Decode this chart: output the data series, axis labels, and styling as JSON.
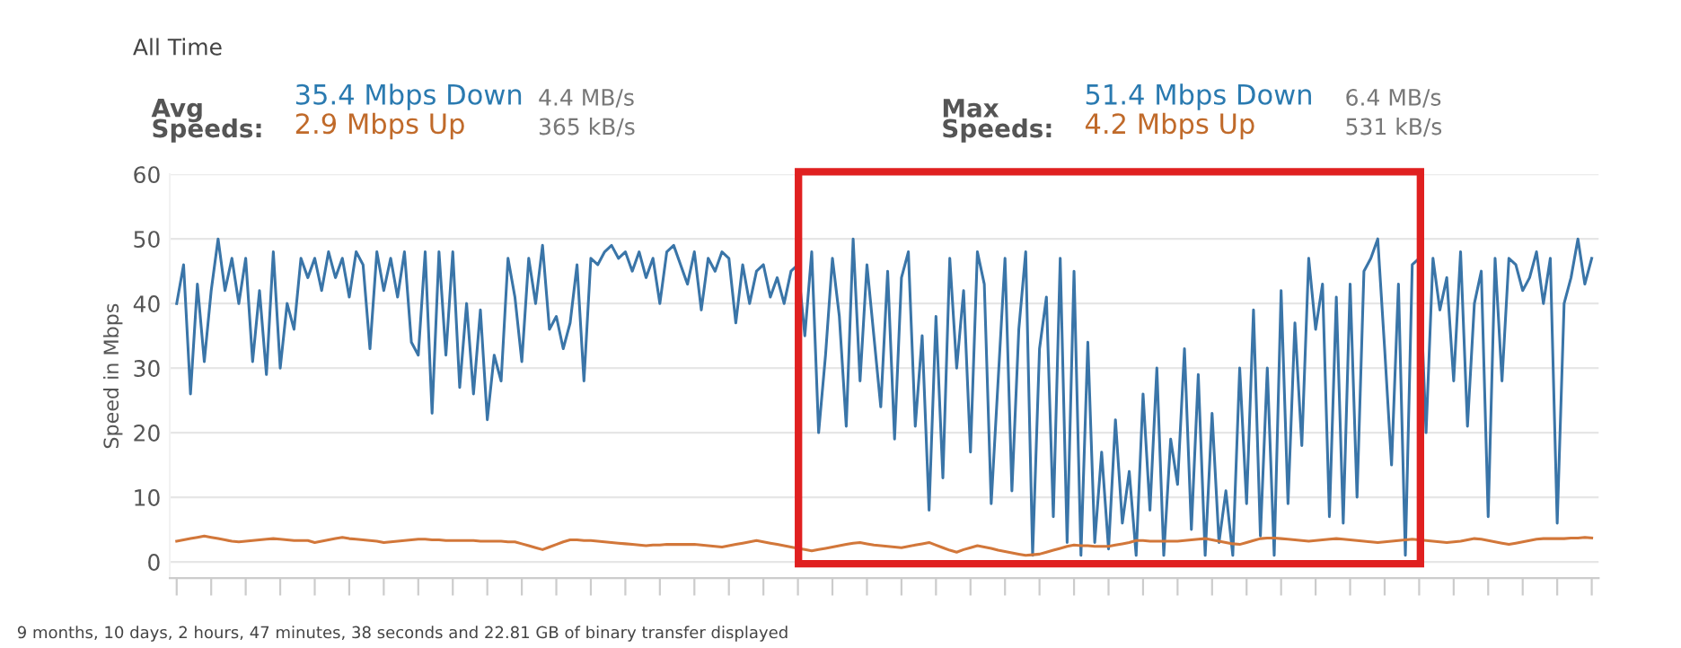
{
  "chart_data": {
    "type": "line",
    "title": "All Time",
    "ylabel": "Speed in Mbps",
    "annotations": [
      "Avg\nSpeeds:",
      "35.4 Mbps Down",
      "2.9 Mbps Up",
      "4.4 MB/s",
      "365 kB/s",
      "Max\nSpeeds:",
      "51.4 Mbps Down",
      "4.2 Mbps Up",
      "6.4 MB/s",
      "531 kB/s",
      "9 months, 10 days, 2 hours, 47 minutes, 38 seconds and 22.81 GB of binary transfer displayed"
    ],
    "categories": [
      null,
      null,
      null,
      null,
      null,
      null,
      null,
      null,
      null,
      null,
      null,
      null,
      null,
      null,
      null,
      null,
      null,
      null,
      null,
      null,
      null,
      null,
      null,
      null,
      null,
      null,
      null,
      null,
      null,
      null,
      null,
      null,
      null,
      null,
      null,
      null,
      null,
      null,
      null,
      null,
      null,
      null,
      null,
      null,
      null,
      null,
      null,
      null,
      null,
      null,
      null,
      null,
      null,
      null,
      null,
      null,
      null,
      null,
      null,
      null,
      null,
      null,
      null,
      null,
      null,
      null,
      null,
      null,
      null,
      null,
      null,
      null,
      null,
      null,
      null,
      null,
      null,
      null,
      null,
      null,
      null,
      null,
      null,
      null,
      null,
      null,
      null,
      null,
      null,
      null,
      null,
      null,
      null,
      null,
      null,
      null,
      null,
      null,
      null,
      null,
      null,
      null,
      null,
      null,
      null,
      null,
      null,
      null,
      null,
      null,
      null,
      null,
      null,
      null,
      null,
      null,
      null,
      null,
      null,
      null,
      null,
      null,
      null,
      null,
      null,
      null,
      null,
      null,
      null,
      null,
      null,
      null,
      null,
      null,
      null,
      null,
      null,
      null,
      null,
      null,
      null,
      null,
      null,
      null,
      null,
      null,
      null,
      null,
      null,
      null,
      null,
      null,
      null,
      null,
      null,
      null,
      null,
      null,
      null,
      null,
      null,
      null,
      null,
      null,
      null,
      null,
      null,
      null,
      null,
      null,
      null,
      null,
      null,
      null,
      null,
      null,
      null,
      null,
      null,
      null,
      null,
      null,
      null,
      null,
      null,
      null,
      null,
      null,
      null,
      null,
      null,
      null,
      null,
      null,
      null,
      null,
      null,
      null,
      null,
      null,
      null,
      null,
      null,
      null,
      null,
      null
    ],
    "series": [
      {
        "color": "#3a75a8",
        "values": [
          40,
          46,
          26,
          43,
          31,
          42,
          50,
          42,
          47,
          40,
          47,
          31,
          42,
          29,
          48,
          30,
          40,
          36,
          47,
          44,
          47,
          42,
          48,
          44,
          47,
          41,
          48,
          46,
          33,
          48,
          42,
          47,
          41,
          48,
          34,
          32,
          48,
          23,
          48,
          32,
          48,
          27,
          40,
          26,
          39,
          22,
          32,
          28,
          47,
          41,
          31,
          47,
          40,
          49,
          36,
          38,
          33,
          37,
          46,
          28,
          47,
          46,
          48,
          49,
          47,
          48,
          45,
          48,
          44,
          47,
          40,
          48,
          49,
          46,
          43,
          48,
          39,
          47,
          45,
          48,
          47,
          37,
          46,
          40,
          45,
          46,
          41,
          44,
          40,
          45,
          46,
          35,
          48,
          20,
          32,
          47,
          38,
          21,
          50,
          28,
          46,
          35,
          24,
          45,
          19,
          44,
          48,
          21,
          35,
          8,
          38,
          13,
          47,
          30,
          42,
          17,
          48,
          43,
          9,
          28,
          47,
          11,
          36,
          48,
          1,
          33,
          41,
          7,
          47,
          3,
          45,
          1,
          34,
          3,
          17,
          2,
          22,
          6,
          14,
          1,
          26,
          8,
          30,
          1,
          19,
          12,
          33,
          5,
          29,
          1,
          23,
          3,
          11,
          1,
          30,
          9,
          39,
          4,
          30,
          1,
          42,
          9,
          37,
          18,
          47,
          36,
          43,
          7,
          41,
          6,
          43,
          10,
          45,
          47,
          50,
          33,
          15,
          43,
          1,
          46,
          47,
          20,
          47,
          39,
          44,
          28,
          48,
          21,
          40,
          45,
          7,
          47,
          28,
          47,
          46,
          42,
          44,
          48,
          40,
          47,
          6,
          40,
          44,
          50,
          43,
          47
        ]
      },
      {
        "color": "#d2773a",
        "values": [
          3.2,
          3.4,
          3.6,
          3.8,
          4,
          3.8,
          3.6,
          3.4,
          3.2,
          3.1,
          3.2,
          3.3,
          3.4,
          3.5,
          3.6,
          3.5,
          3.4,
          3.3,
          3.3,
          3.3,
          3,
          3.2,
          3.4,
          3.6,
          3.8,
          3.6,
          3.5,
          3.4,
          3.3,
          3.2,
          3,
          3.1,
          3.2,
          3.3,
          3.4,
          3.5,
          3.5,
          3.4,
          3.4,
          3.3,
          3.3,
          3.3,
          3.3,
          3.3,
          3.2,
          3.2,
          3.2,
          3.2,
          3.1,
          3.1,
          2.8,
          2.5,
          2.2,
          1.9,
          2.3,
          2.7,
          3.1,
          3.4,
          3.4,
          3.3,
          3.3,
          3.2,
          3.1,
          3,
          2.9,
          2.8,
          2.7,
          2.6,
          2.5,
          2.6,
          2.6,
          2.7,
          2.7,
          2.7,
          2.7,
          2.7,
          2.6,
          2.5,
          2.4,
          2.3,
          2.5,
          2.7,
          2.9,
          3.1,
          3.3,
          3.1,
          2.9,
          2.7,
          2.5,
          2.3,
          2.1,
          1.9,
          1.7,
          1.9,
          2.1,
          2.3,
          2.5,
          2.7,
          2.9,
          3,
          2.8,
          2.6,
          2.5,
          2.4,
          2.3,
          2.2,
          2.4,
          2.6,
          2.8,
          3,
          2.6,
          2.2,
          1.8,
          1.5,
          1.9,
          2.2,
          2.5,
          2.3,
          2.1,
          1.8,
          1.6,
          1.4,
          1.2,
          1,
          1.1,
          1.2,
          1.5,
          1.8,
          2.1,
          2.4,
          2.6,
          2.5,
          2.5,
          2.4,
          2.4,
          2.4,
          2.6,
          2.8,
          3,
          3.3,
          3.3,
          3.2,
          3.2,
          3.2,
          3.2,
          3.2,
          3.3,
          3.4,
          3.5,
          3.6,
          3.4,
          3.2,
          3,
          2.8,
          2.7,
          3,
          3.3,
          3.6,
          3.7,
          3.7,
          3.6,
          3.5,
          3.4,
          3.3,
          3.2,
          3.3,
          3.4,
          3.5,
          3.6,
          3.5,
          3.4,
          3.3,
          3.2,
          3.1,
          3,
          3.1,
          3.2,
          3.3,
          3.4,
          3.5,
          3.4,
          3.3,
          3.2,
          3.1,
          3,
          3.1,
          3.2,
          3.4,
          3.6,
          3.5,
          3.3,
          3.1,
          2.9,
          2.7,
          2.9,
          3.1,
          3.3,
          3.5,
          3.6,
          3.6,
          3.6,
          3.6,
          3.7,
          3.7,
          3.8,
          3.7
        ]
      }
    ],
    "ylim": [
      -2.5,
      60
    ],
    "yticks": [
      0,
      10,
      20,
      30,
      40,
      50,
      60
    ],
    "grid": "y",
    "marker": "none",
    "line_style": "solid"
  }
}
